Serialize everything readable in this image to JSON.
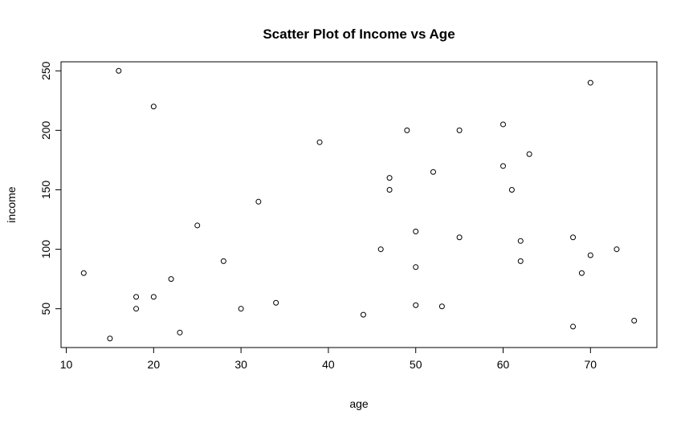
{
  "chart_data": {
    "type": "scatter",
    "title": "Scatter Plot of Income vs Age",
    "xlabel": "age",
    "ylabel": "income",
    "xlim": [
      9.4,
      77.6
    ],
    "ylim": [
      17.4,
      257.6
    ],
    "x_ticks": [
      10,
      20,
      30,
      40,
      50,
      60,
      70
    ],
    "y_ticks": [
      50,
      100,
      150,
      200,
      250
    ],
    "grid": false,
    "marker": "open-circle",
    "colors": {
      "points": "#000000",
      "axes": "#000000",
      "background": "#ffffff"
    },
    "points": [
      {
        "x": 12,
        "y": 80
      },
      {
        "x": 15,
        "y": 25
      },
      {
        "x": 16,
        "y": 250
      },
      {
        "x": 18,
        "y": 60
      },
      {
        "x": 18,
        "y": 50
      },
      {
        "x": 20,
        "y": 220
      },
      {
        "x": 20,
        "y": 60
      },
      {
        "x": 22,
        "y": 75
      },
      {
        "x": 23,
        "y": 30
      },
      {
        "x": 25,
        "y": 120
      },
      {
        "x": 28,
        "y": 90
      },
      {
        "x": 30,
        "y": 50
      },
      {
        "x": 32,
        "y": 140
      },
      {
        "x": 34,
        "y": 55
      },
      {
        "x": 39,
        "y": 190
      },
      {
        "x": 44,
        "y": 45
      },
      {
        "x": 46,
        "y": 100
      },
      {
        "x": 47,
        "y": 160
      },
      {
        "x": 47,
        "y": 150
      },
      {
        "x": 49,
        "y": 200
      },
      {
        "x": 50,
        "y": 115
      },
      {
        "x": 50,
        "y": 85
      },
      {
        "x": 50,
        "y": 53
      },
      {
        "x": 52,
        "y": 165
      },
      {
        "x": 53,
        "y": 52
      },
      {
        "x": 55,
        "y": 200
      },
      {
        "x": 55,
        "y": 110
      },
      {
        "x": 60,
        "y": 205
      },
      {
        "x": 60,
        "y": 170
      },
      {
        "x": 61,
        "y": 150
      },
      {
        "x": 62,
        "y": 107
      },
      {
        "x": 62,
        "y": 90
      },
      {
        "x": 63,
        "y": 180
      },
      {
        "x": 68,
        "y": 110
      },
      {
        "x": 68,
        "y": 35
      },
      {
        "x": 69,
        "y": 80
      },
      {
        "x": 70,
        "y": 240
      },
      {
        "x": 70,
        "y": 95
      },
      {
        "x": 73,
        "y": 100
      },
      {
        "x": 75,
        "y": 40
      }
    ]
  }
}
